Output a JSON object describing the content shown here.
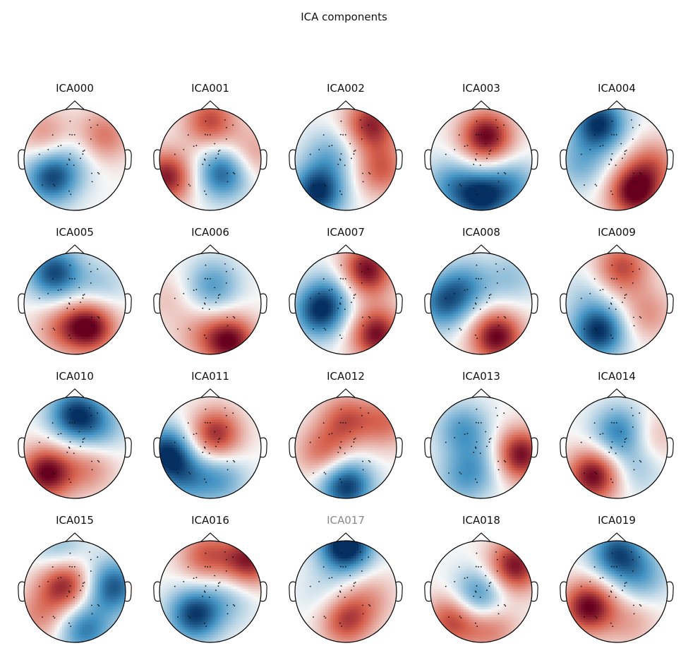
{
  "figure": {
    "title": "ICA components"
  },
  "colors": {
    "positive_strong": "#67001f",
    "positive": "#d6604d",
    "neutral": "#f7f7f7",
    "negative": "#4393c3",
    "negative_strong": "#053061",
    "excluded_title": "#8a8a8a"
  },
  "components": [
    {
      "label": "ICA000",
      "excluded": false,
      "blobs": [
        [
          -0.45,
          0.35,
          -0.9
        ],
        [
          0.55,
          -0.45,
          0.55
        ],
        [
          0.1,
          -0.1,
          -0.2
        ],
        [
          -0.6,
          -0.5,
          0.4
        ]
      ]
    },
    {
      "label": "ICA001",
      "excluded": false,
      "blobs": [
        [
          0.25,
          0.25,
          -0.85
        ],
        [
          -0.85,
          0.35,
          0.9
        ],
        [
          0,
          -0.75,
          0.7
        ],
        [
          0.8,
          -0.1,
          0.4
        ]
      ]
    },
    {
      "label": "ICA002",
      "excluded": false,
      "blobs": [
        [
          0.5,
          -0.7,
          0.85
        ],
        [
          -0.55,
          0.65,
          -1.0
        ],
        [
          0.7,
          0.2,
          0.6
        ],
        [
          -0.3,
          -0.1,
          -0.4
        ]
      ]
    },
    {
      "label": "ICA003",
      "excluded": false,
      "blobs": [
        [
          0.1,
          -0.45,
          1.0
        ],
        [
          0,
          0.75,
          -0.9
        ],
        [
          -0.6,
          0.5,
          -0.5
        ],
        [
          0.6,
          0.5,
          -0.5
        ]
      ]
    },
    {
      "label": "ICA004",
      "excluded": false,
      "blobs": [
        [
          -0.35,
          -0.7,
          -1.0
        ],
        [
          0.35,
          0.65,
          1.0
        ],
        [
          0.7,
          0.1,
          0.5
        ],
        [
          -0.7,
          0.1,
          -0.4
        ]
      ]
    },
    {
      "label": "ICA005",
      "excluded": false,
      "blobs": [
        [
          -0.4,
          -0.6,
          -0.9
        ],
        [
          0.3,
          0.45,
          1.0
        ],
        [
          0.5,
          -0.3,
          -0.3
        ],
        [
          -0.3,
          0.5,
          0.4
        ]
      ]
    },
    {
      "label": "ICA006",
      "excluded": false,
      "blobs": [
        [
          0.05,
          -0.35,
          -0.55
        ],
        [
          0.4,
          0.75,
          0.95
        ],
        [
          -0.85,
          -0.1,
          0.2
        ],
        [
          -0.2,
          0.6,
          0.3
        ]
      ]
    },
    {
      "label": "ICA007",
      "excluded": false,
      "blobs": [
        [
          0.4,
          -0.65,
          1.0
        ],
        [
          -0.5,
          0.15,
          -0.95
        ],
        [
          0.6,
          0.6,
          0.95
        ],
        [
          -0.2,
          -0.3,
          -0.3
        ]
      ]
    },
    {
      "label": "ICA008",
      "excluded": false,
      "blobs": [
        [
          0.3,
          0.65,
          1.0
        ],
        [
          -0.75,
          0,
          -0.7
        ],
        [
          -0.3,
          -0.35,
          -0.5
        ],
        [
          0.6,
          -0.5,
          -0.3
        ]
      ]
    },
    {
      "label": "ICA009",
      "excluded": false,
      "blobs": [
        [
          -0.35,
          0.55,
          -1.0
        ],
        [
          0.1,
          -0.7,
          0.7
        ],
        [
          0.6,
          0.2,
          0.4
        ],
        [
          -0.6,
          -0.2,
          -0.2
        ]
      ]
    },
    {
      "label": "ICA010",
      "excluded": false,
      "blobs": [
        [
          0,
          -0.65,
          -0.9
        ],
        [
          -0.55,
          0.5,
          1.0
        ],
        [
          0.5,
          -0.4,
          -0.4
        ],
        [
          0.3,
          0.4,
          0.4
        ]
      ]
    },
    {
      "label": "ICA011",
      "excluded": false,
      "blobs": [
        [
          0.1,
          -0.25,
          0.85
        ],
        [
          -0.85,
          0.1,
          -0.95
        ],
        [
          0.2,
          0.6,
          -0.5
        ],
        [
          -0.5,
          0.6,
          -0.5
        ]
      ]
    },
    {
      "label": "ICA012",
      "excluded": false,
      "blobs": [
        [
          0,
          0.75,
          -1.0
        ],
        [
          0,
          -0.55,
          0.6
        ],
        [
          -0.45,
          0.1,
          0.55
        ],
        [
          0.8,
          -0.5,
          0.5
        ]
      ]
    },
    {
      "label": "ICA013",
      "excluded": false,
      "blobs": [
        [
          0.75,
          0.15,
          1.0
        ],
        [
          -0.35,
          -0.35,
          -0.55
        ],
        [
          -0.35,
          0.6,
          -0.45
        ],
        [
          0.1,
          0.3,
          -0.3
        ]
      ]
    },
    {
      "label": "ICA014",
      "excluded": false,
      "blobs": [
        [
          -0.45,
          0.55,
          1.0
        ],
        [
          0.05,
          -0.3,
          -0.7
        ],
        [
          0.7,
          -0.2,
          0.3
        ],
        [
          0.4,
          0.4,
          -0.3
        ]
      ]
    },
    {
      "label": "ICA015",
      "excluded": false,
      "blobs": [
        [
          -0.2,
          -0.15,
          0.9
        ],
        [
          0.75,
          -0.1,
          -0.85
        ],
        [
          0.2,
          0.75,
          -0.7
        ],
        [
          -0.3,
          -0.8,
          -0.4
        ],
        [
          -0.7,
          0.5,
          0.4
        ]
      ]
    },
    {
      "label": "ICA016",
      "excluded": false,
      "blobs": [
        [
          -0.3,
          0.45,
          -0.95
        ],
        [
          0.75,
          -0.6,
          0.9
        ],
        [
          -0.1,
          -0.7,
          0.6
        ],
        [
          0.4,
          0.1,
          -0.3
        ]
      ]
    },
    {
      "label": "ICA017",
      "excluded": true,
      "blobs": [
        [
          0,
          -0.9,
          -1.2
        ],
        [
          0,
          0.55,
          0.75
        ],
        [
          -0.4,
          0.1,
          -0.2
        ],
        [
          0.5,
          0.1,
          0.3
        ]
      ]
    },
    {
      "label": "ICA018",
      "excluded": false,
      "blobs": [
        [
          0.65,
          -0.5,
          0.95
        ],
        [
          -0.55,
          0.55,
          0.75
        ],
        [
          -0.05,
          0.1,
          -0.75
        ],
        [
          0.2,
          0.7,
          0.5
        ]
      ]
    },
    {
      "label": "ICA019",
      "excluded": false,
      "blobs": [
        [
          -0.55,
          0.3,
          1.0
        ],
        [
          0,
          -0.75,
          -0.85
        ],
        [
          0.5,
          -0.3,
          -0.45
        ],
        [
          0.3,
          0.6,
          0.3
        ]
      ]
    }
  ]
}
